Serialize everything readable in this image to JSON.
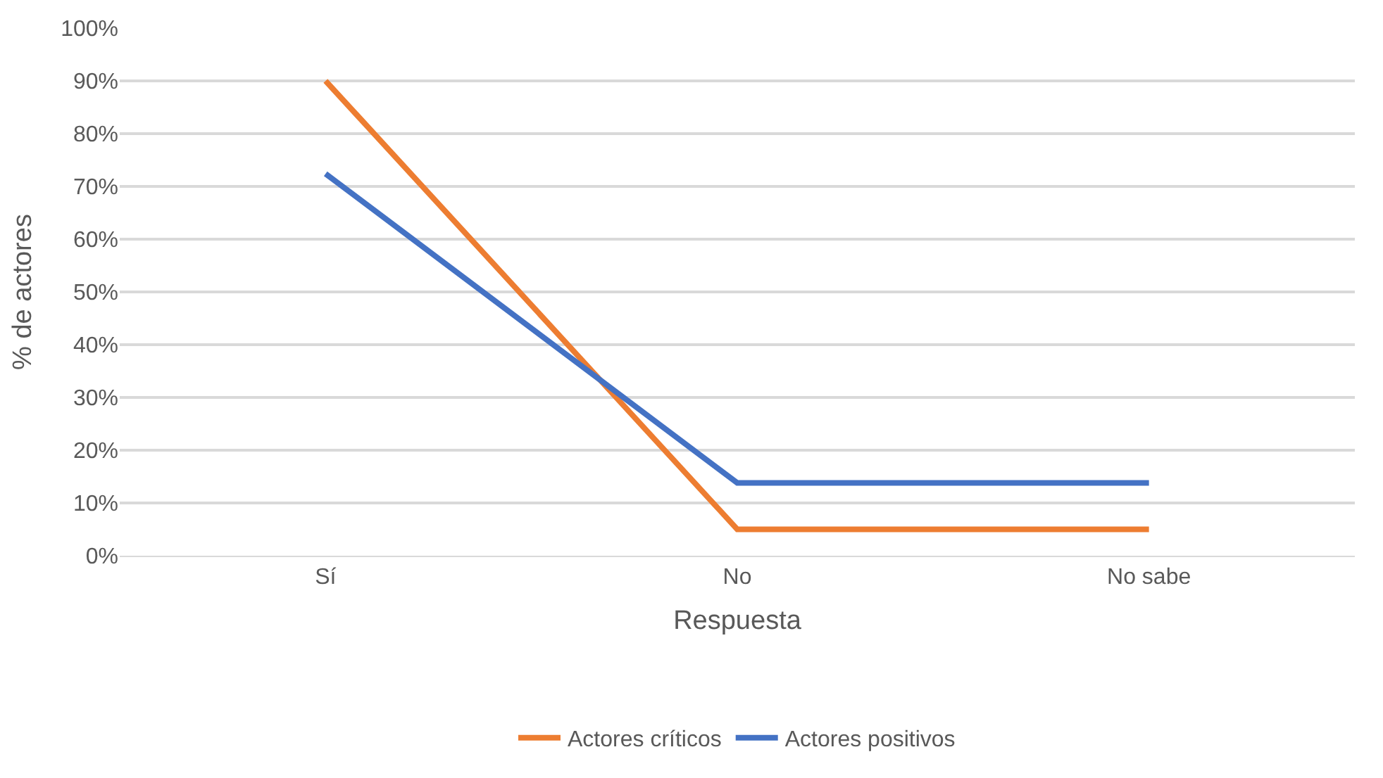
{
  "chart_data": {
    "type": "line",
    "xlabel": "Respuesta",
    "ylabel": "% de actores",
    "categories": [
      "Sí",
      "No",
      "No sabe"
    ],
    "series": [
      {
        "name": "Actores críticos",
        "color": "#ed7d31",
        "values": [
          90,
          5,
          5
        ]
      },
      {
        "name": "Actores positivos",
        "color": "#4472c4",
        "values": [
          72.4,
          13.8,
          13.8
        ]
      }
    ],
    "ylim": [
      0,
      100
    ],
    "yticks": [
      {
        "value": 0,
        "label": "0%"
      },
      {
        "value": 10,
        "label": "10%"
      },
      {
        "value": 20,
        "label": "20%"
      },
      {
        "value": 30,
        "label": "30%"
      },
      {
        "value": 40,
        "label": "40%"
      },
      {
        "value": 50,
        "label": "50%"
      },
      {
        "value": 60,
        "label": "60%"
      },
      {
        "value": 70,
        "label": "70%"
      },
      {
        "value": 80,
        "label": "80%"
      },
      {
        "value": 90,
        "label": "90%"
      },
      {
        "value": 100,
        "label": "100%"
      }
    ],
    "grid": "y",
    "legend": "bottom",
    "marker": "none",
    "line_style": "solid"
  }
}
